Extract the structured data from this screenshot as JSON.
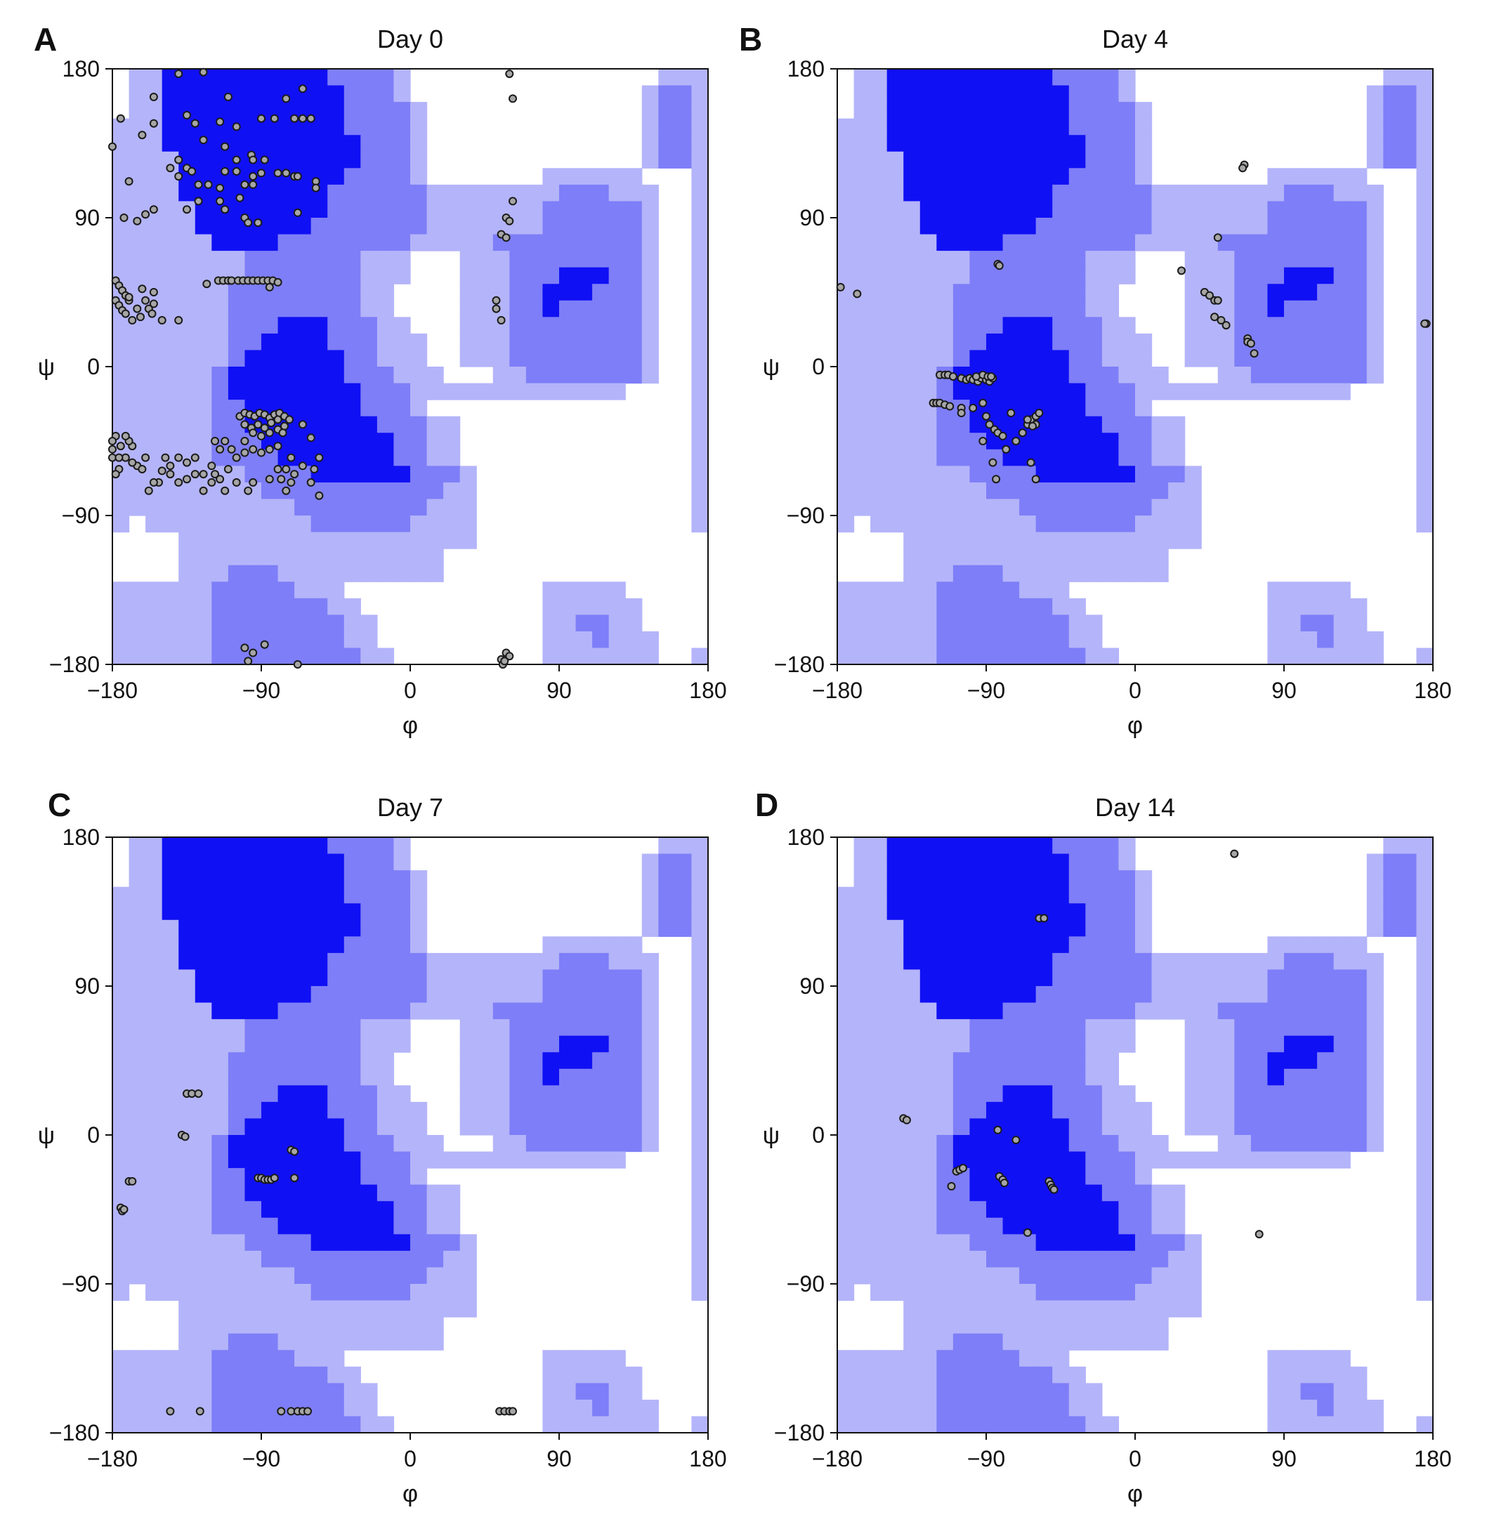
{
  "figure": {
    "xlabel": "φ",
    "ylabel": "ψ",
    "ticks": [
      "−180",
      "−90",
      "0",
      "90",
      "180"
    ]
  },
  "colors": {
    "core": "#1010f4",
    "allowed": "#7e7ef8",
    "generous": "#b4b4fa",
    "disallowed": "#ffffff",
    "point_fill": "#a6a6a6",
    "point_stroke": "#1a1a1a"
  },
  "chart_data": [
    {
      "type": "scatter",
      "panel": "A",
      "title": "Day 0",
      "xlim": [
        -180,
        180
      ],
      "ylim": [
        -180,
        180
      ],
      "background": "Ramachandran regions (core, allowed, generously allowed)",
      "points": [
        [
          -140,
          177
        ],
        [
          -125,
          178
        ],
        [
          -155,
          163
        ],
        [
          -110,
          163
        ],
        [
          -75,
          162
        ],
        [
          -65,
          168
        ],
        [
          -135,
          152
        ],
        [
          -115,
          148
        ],
        [
          -90,
          150
        ],
        [
          -82,
          150
        ],
        [
          -70,
          150
        ],
        [
          -65,
          150
        ],
        [
          -60,
          150
        ],
        [
          -155,
          147
        ],
        [
          -130,
          147
        ],
        [
          -105,
          145
        ],
        [
          -162,
          140
        ],
        [
          -125,
          137
        ],
        [
          -112,
          133
        ],
        [
          -96,
          128
        ],
        [
          -105,
          125
        ],
        [
          -95,
          125
        ],
        [
          -88,
          125
        ],
        [
          -140,
          125
        ],
        [
          -135,
          120
        ],
        [
          -112,
          118
        ],
        [
          -105,
          118
        ],
        [
          -95,
          115
        ],
        [
          -90,
          117
        ],
        [
          -80,
          117
        ],
        [
          -75,
          117
        ],
        [
          -70,
          115
        ],
        [
          -68,
          115
        ],
        [
          -57,
          112
        ],
        [
          -57,
          108
        ],
        [
          -145,
          120
        ],
        [
          -132,
          118
        ],
        [
          -140,
          115
        ],
        [
          -128,
          110
        ],
        [
          -122,
          110
        ],
        [
          -115,
          108
        ],
        [
          -100,
          110
        ],
        [
          -95,
          110
        ],
        [
          -103,
          102
        ],
        [
          -115,
          100
        ],
        [
          -128,
          100
        ],
        [
          -135,
          95
        ],
        [
          -112,
          95
        ],
        [
          -100,
          90
        ],
        [
          -92,
          87
        ],
        [
          -98,
          87
        ],
        [
          -155,
          95
        ],
        [
          -160,
          92
        ],
        [
          -173,
          90
        ],
        [
          -180,
          133
        ],
        [
          -175,
          150
        ],
        [
          -170,
          112
        ],
        [
          -165,
          88
        ],
        [
          -68,
          93
        ],
        [
          -123,
          50
        ],
        [
          -116,
          52
        ],
        [
          -113,
          52
        ],
        [
          -110,
          52
        ],
        [
          -108,
          52
        ],
        [
          -104,
          52
        ],
        [
          -101,
          52
        ],
        [
          -98,
          52
        ],
        [
          -95,
          52
        ],
        [
          -92,
          52
        ],
        [
          -89,
          52
        ],
        [
          -86,
          52
        ],
        [
          -83,
          52
        ],
        [
          -80,
          51
        ],
        [
          -85,
          48
        ],
        [
          -178,
          52
        ],
        [
          -176,
          49
        ],
        [
          -174,
          46
        ],
        [
          -172,
          43
        ],
        [
          -170,
          40
        ],
        [
          -178,
          40
        ],
        [
          -176,
          37
        ],
        [
          -174,
          34
        ],
        [
          -172,
          32
        ],
        [
          -170,
          42
        ],
        [
          -165,
          35
        ],
        [
          -160,
          40
        ],
        [
          -158,
          35
        ],
        [
          -156,
          32
        ],
        [
          -163,
          30
        ],
        [
          -168,
          28
        ],
        [
          -155,
          45
        ],
        [
          -155,
          38
        ],
        [
          -150,
          28
        ],
        [
          -162,
          47
        ],
        [
          -140,
          28
        ],
        [
          -103,
          -30
        ],
        [
          -100,
          -28
        ],
        [
          -97,
          -29
        ],
        [
          -94,
          -30
        ],
        [
          -91,
          -28
        ],
        [
          -88,
          -29
        ],
        [
          -85,
          -31
        ],
        [
          -82,
          -29
        ],
        [
          -79,
          -28
        ],
        [
          -76,
          -30
        ],
        [
          -73,
          -32
        ],
        [
          -100,
          -35
        ],
        [
          -96,
          -37
        ],
        [
          -92,
          -35
        ],
        [
          -88,
          -37
        ],
        [
          -84,
          -34
        ],
        [
          -80,
          -32
        ],
        [
          -76,
          -36
        ],
        [
          -95,
          -40
        ],
        [
          -90,
          -42
        ],
        [
          -85,
          -40
        ],
        [
          -80,
          -38
        ],
        [
          -77,
          -40
        ],
        [
          -95,
          -50
        ],
        [
          -90,
          -52
        ],
        [
          -85,
          -50
        ],
        [
          -80,
          -48
        ],
        [
          -105,
          -55
        ],
        [
          -100,
          -52
        ],
        [
          -65,
          -35
        ],
        [
          -60,
          -43
        ],
        [
          -55,
          -55
        ],
        [
          -58,
          -62
        ],
        [
          -60,
          -70
        ],
        [
          -55,
          -78
        ],
        [
          -65,
          -60
        ],
        [
          -72,
          -55
        ],
        [
          -80,
          -62
        ],
        [
          -75,
          -62
        ],
        [
          -70,
          -65
        ],
        [
          -78,
          -68
        ],
        [
          -72,
          -70
        ],
        [
          -75,
          -75
        ],
        [
          -85,
          -68
        ],
        [
          -95,
          -70
        ],
        [
          -105,
          -70
        ],
        [
          -112,
          -75
        ],
        [
          -98,
          -75
        ],
        [
          -120,
          -60
        ],
        [
          -118,
          -65
        ],
        [
          -125,
          -65
        ],
        [
          -125,
          -75
        ],
        [
          -120,
          -70
        ],
        [
          -110,
          -62
        ],
        [
          -115,
          -68
        ],
        [
          -130,
          -55
        ],
        [
          -130,
          -65
        ],
        [
          -135,
          -58
        ],
        [
          -135,
          -68
        ],
        [
          -140,
          -55
        ],
        [
          -140,
          -70
        ],
        [
          -145,
          -60
        ],
        [
          -145,
          -65
        ],
        [
          -148,
          -55
        ],
        [
          -150,
          -63
        ],
        [
          -152,
          -70
        ],
        [
          -155,
          -70
        ],
        [
          -158,
          -75
        ],
        [
          -160,
          -55
        ],
        [
          -165,
          -60
        ],
        [
          -168,
          -48
        ],
        [
          -170,
          -45
        ],
        [
          -172,
          -55
        ],
        [
          -175,
          -48
        ],
        [
          -178,
          -42
        ],
        [
          -180,
          -45
        ],
        [
          -180,
          -50
        ],
        [
          -180,
          -55
        ],
        [
          -176,
          -55
        ],
        [
          -176,
          -62
        ],
        [
          -178,
          -65
        ],
        [
          -172,
          -42
        ],
        [
          -168,
          -58
        ],
        [
          -162,
          -62
        ],
        [
          -115,
          -50
        ],
        [
          -112,
          -45
        ],
        [
          -108,
          -50
        ],
        [
          -118,
          -45
        ],
        [
          -100,
          -45
        ],
        [
          60,
          177
        ],
        [
          62,
          162
        ],
        [
          62,
          100
        ],
        [
          58,
          90
        ],
        [
          60,
          88
        ],
        [
          55,
          80
        ],
        [
          58,
          78
        ],
        [
          52,
          40
        ],
        [
          52,
          35
        ],
        [
          55,
          28
        ],
        [
          -100,
          -170
        ],
        [
          -95,
          -173
        ],
        [
          -88,
          -168
        ],
        [
          -98,
          -178
        ],
        [
          -68,
          -180
        ],
        [
          55,
          -177
        ],
        [
          58,
          -173
        ],
        [
          60,
          -175
        ],
        [
          56,
          -180
        ],
        [
          57,
          -178
        ]
      ]
    },
    {
      "type": "scatter",
      "panel": "B",
      "title": "Day 4",
      "xlim": [
        -180,
        180
      ],
      "ylim": [
        -180,
        180
      ],
      "background": "Ramachandran regions (core, allowed, generously allowed)",
      "points": [
        [
          66,
          122
        ],
        [
          65,
          120
        ],
        [
          50,
          78
        ],
        [
          28,
          58
        ],
        [
          -83,
          62
        ],
        [
          -82,
          61
        ],
        [
          -178,
          48
        ],
        [
          -168,
          44
        ],
        [
          176,
          26
        ],
        [
          175,
          26
        ],
        [
          42,
          45
        ],
        [
          45,
          43
        ],
        [
          48,
          40
        ],
        [
          50,
          40
        ],
        [
          48,
          30
        ],
        [
          52,
          28
        ],
        [
          55,
          25
        ],
        [
          68,
          17
        ],
        [
          68,
          15
        ],
        [
          70,
          14
        ],
        [
          72,
          8
        ],
        [
          -118,
          -5
        ],
        [
          -115,
          -5
        ],
        [
          -113,
          -5
        ],
        [
          -110,
          -6
        ],
        [
          -105,
          -7
        ],
        [
          -102,
          -8
        ],
        [
          -100,
          -7
        ],
        [
          -98,
          -8
        ],
        [
          -95,
          -9
        ],
        [
          -93,
          -7
        ],
        [
          -90,
          -8
        ],
        [
          -88,
          -9
        ],
        [
          -86,
          -7
        ],
        [
          -96,
          -6
        ],
        [
          -92,
          -5
        ],
        [
          -89,
          -6
        ],
        [
          -87,
          -6
        ],
        [
          -122,
          -22
        ],
        [
          -120,
          -22
        ],
        [
          -118,
          -22
        ],
        [
          -115,
          -23
        ],
        [
          -112,
          -24
        ],
        [
          -105,
          -25
        ],
        [
          -105,
          -28
        ],
        [
          -98,
          -25
        ],
        [
          -92,
          -22
        ],
        [
          -90,
          -30
        ],
        [
          -88,
          -35
        ],
        [
          -85,
          -38
        ],
        [
          -83,
          -40
        ],
        [
          -80,
          -42
        ],
        [
          -78,
          -50
        ],
        [
          -72,
          -45
        ],
        [
          -68,
          -40
        ],
        [
          -65,
          -35
        ],
        [
          -63,
          -32
        ],
        [
          -60,
          -30
        ],
        [
          -58,
          -28
        ],
        [
          -60,
          -35
        ],
        [
          -65,
          -32
        ],
        [
          -62,
          -36
        ],
        [
          -75,
          -28
        ],
        [
          -92,
          -45
        ],
        [
          -86,
          -58
        ],
        [
          -84,
          -68
        ],
        [
          -63,
          -58
        ],
        [
          -60,
          -68
        ]
      ]
    },
    {
      "type": "scatter",
      "panel": "C",
      "title": "Day 7",
      "xlim": [
        -180,
        180
      ],
      "ylim": [
        -180,
        180
      ],
      "background": "Ramachandran regions (core, allowed, generously allowed)",
      "points": [
        [
          -135,
          25
        ],
        [
          -132,
          25
        ],
        [
          -128,
          25
        ],
        [
          -138,
          0
        ],
        [
          -136,
          -1
        ],
        [
          -170,
          -28
        ],
        [
          -168,
          -28
        ],
        [
          -175,
          -44
        ],
        [
          -174,
          -46
        ],
        [
          -173,
          -45
        ],
        [
          -92,
          -26
        ],
        [
          -90,
          -26
        ],
        [
          -88,
          -27
        ],
        [
          -86,
          -27
        ],
        [
          -84,
          -27
        ],
        [
          -82,
          -26
        ],
        [
          -70,
          -26
        ],
        [
          -72,
          -9
        ],
        [
          -70,
          -10
        ],
        [
          -145,
          -167
        ],
        [
          -127,
          -167
        ],
        [
          -78,
          -167
        ],
        [
          -72,
          -167
        ],
        [
          -68,
          -167
        ],
        [
          -65,
          -167
        ],
        [
          -62,
          -167
        ],
        [
          54,
          -167
        ],
        [
          57,
          -167
        ],
        [
          60,
          -167
        ],
        [
          62,
          -167
        ]
      ]
    },
    {
      "type": "scatter",
      "panel": "D",
      "title": "Day 14",
      "xlim": [
        -180,
        180
      ],
      "ylim": [
        -180,
        180
      ],
      "background": "Ramachandran regions (core, allowed, generously allowed)",
      "points": [
        [
          60,
          170
        ],
        [
          -58,
          131
        ],
        [
          -55,
          131
        ],
        [
          -140,
          10
        ],
        [
          -138,
          9
        ],
        [
          -83,
          3
        ],
        [
          -72,
          -3
        ],
        [
          -108,
          -22
        ],
        [
          -106,
          -21
        ],
        [
          -104,
          -20
        ],
        [
          -111,
          -31
        ],
        [
          -82,
          -25
        ],
        [
          -80,
          -27
        ],
        [
          -79,
          -29
        ],
        [
          -52,
          -28
        ],
        [
          -51,
          -30
        ],
        [
          -50,
          -32
        ],
        [
          -49,
          -33
        ],
        [
          -65,
          -59
        ],
        [
          75,
          -60
        ]
      ]
    }
  ]
}
